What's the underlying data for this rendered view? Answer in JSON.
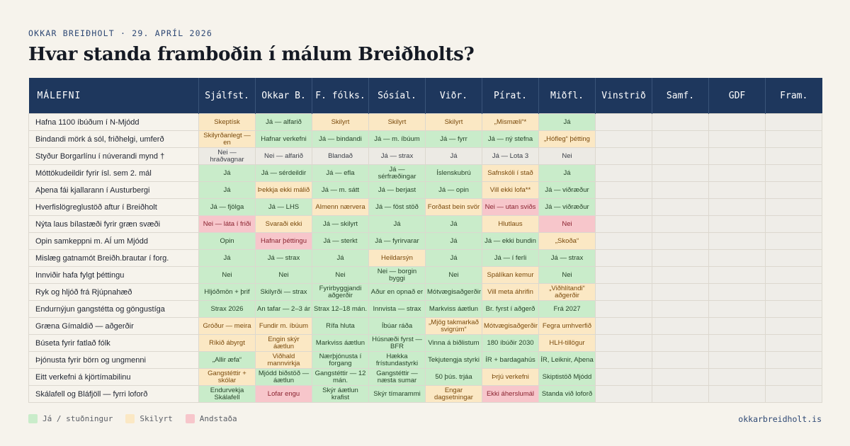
{
  "header": {
    "meta": "OKKAR BREIÐHOLT · 29. APRÍL 2026",
    "title": "Hvar standa framboðin í málum Breiðholts?"
  },
  "table": {
    "columns": [
      "MÁLEFNI",
      "Sjálfst.",
      "Okkar B.",
      "F. fólks.",
      "Sósíal.",
      "Viðr.",
      "Pírat.",
      "Miðfl.",
      "Vinstrið",
      "Samf.",
      "GDF",
      "Fram."
    ],
    "rows": [
      {
        "issue": "Hafna 1100 íbúðum í N-Mjódd",
        "cells": [
          [
            "Skeptísk",
            "s"
          ],
          [
            "Já — alfarið",
            "j"
          ],
          [
            "Skilyrt",
            "s"
          ],
          [
            "Skilyrt",
            "s"
          ],
          [
            "Skilyrt",
            "s"
          ],
          [
            "„Mismæli“*",
            "s"
          ],
          [
            "Já",
            "j"
          ],
          [
            "",
            "e"
          ],
          [
            "",
            "e"
          ],
          [
            "",
            "e"
          ],
          [
            "",
            "e"
          ]
        ]
      },
      {
        "issue": "Bindandi mörk á sól, friðhelgi, umferð",
        "cells": [
          [
            "Skilyrðanlegt — en",
            "s"
          ],
          [
            "Hafnar verkefni",
            "j"
          ],
          [
            "Já — bindandi",
            "j"
          ],
          [
            "Já — m. íbúum",
            "j"
          ],
          [
            "Já — fyrr",
            "j"
          ],
          [
            "Já — ný stefna",
            "j"
          ],
          [
            "„Hófleg“ þétting",
            "s"
          ],
          [
            "",
            "e"
          ],
          [
            "",
            "e"
          ],
          [
            "",
            "e"
          ],
          [
            "",
            "e"
          ]
        ]
      },
      {
        "issue": "Styður Borgarlínu í núverandi mynd †",
        "cells": [
          [
            "Nei — hraðvagnar",
            "n"
          ],
          [
            "Nei — alfarið",
            "n"
          ],
          [
            "Blandað",
            "n"
          ],
          [
            "Já — strax",
            "n"
          ],
          [
            "Já",
            "n"
          ],
          [
            "Já — Lota 3",
            "n"
          ],
          [
            "Nei",
            "n"
          ],
          [
            "",
            "e"
          ],
          [
            "",
            "e"
          ],
          [
            "",
            "e"
          ],
          [
            "",
            "e"
          ]
        ]
      },
      {
        "issue": "Móttökudeildir fyrir ísl. sem 2. mál",
        "cells": [
          [
            "Já",
            "j"
          ],
          [
            "Já — sérdeildir",
            "j"
          ],
          [
            "Já — efla",
            "j"
          ],
          [
            "Já — sérfræðingar",
            "j"
          ],
          [
            "Íslenskubrú",
            "j"
          ],
          [
            "Safnskóli í stað",
            "s"
          ],
          [
            "Já",
            "j"
          ],
          [
            "",
            "e"
          ],
          [
            "",
            "e"
          ],
          [
            "",
            "e"
          ],
          [
            "",
            "e"
          ]
        ]
      },
      {
        "issue": "Aþena fái kjallarann í Austurbergi",
        "cells": [
          [
            "Já",
            "j"
          ],
          [
            "Þekkja ekki málið",
            "s"
          ],
          [
            "Já — m. sátt",
            "j"
          ],
          [
            "Já — berjast",
            "j"
          ],
          [
            "Já — opin",
            "j"
          ],
          [
            "Vill ekki lofa**",
            "s"
          ],
          [
            "Já — viðræður",
            "j"
          ],
          [
            "",
            "e"
          ],
          [
            "",
            "e"
          ],
          [
            "",
            "e"
          ],
          [
            "",
            "e"
          ]
        ]
      },
      {
        "issue": "Hverfislögreglustöð aftur í Breiðholt",
        "cells": [
          [
            "Já — fjölga",
            "j"
          ],
          [
            "Já — LHS",
            "j"
          ],
          [
            "Almenn nærvera",
            "s"
          ],
          [
            "Já — föst stöð",
            "j"
          ],
          [
            "Forðast bein svör",
            "s"
          ],
          [
            "Nei — utan sviðs",
            "a"
          ],
          [
            "Já — viðræður",
            "j"
          ],
          [
            "",
            "e"
          ],
          [
            "",
            "e"
          ],
          [
            "",
            "e"
          ],
          [
            "",
            "e"
          ]
        ]
      },
      {
        "issue": "Nýta laus bílastæði fyrir græn svæði",
        "cells": [
          [
            "Nei — láta í friði",
            "a"
          ],
          [
            "Svaraði ekki",
            "s"
          ],
          [
            "Já — skilyrt",
            "j"
          ],
          [
            "Já",
            "j"
          ],
          [
            "Já",
            "j"
          ],
          [
            "Hlutlaus",
            "s"
          ],
          [
            "Nei",
            "a"
          ],
          [
            "",
            "e"
          ],
          [
            "",
            "e"
          ],
          [
            "",
            "e"
          ],
          [
            "",
            "e"
          ]
        ]
      },
      {
        "issue": "Opin samkeppni m. AÍ um Mjódd",
        "cells": [
          [
            "Opin",
            "j"
          ],
          [
            "Hafnar þéttingu",
            "a"
          ],
          [
            "Já — sterkt",
            "j"
          ],
          [
            "Já — fyrirvarar",
            "j"
          ],
          [
            "Já",
            "j"
          ],
          [
            "Já — ekki bundin",
            "j"
          ],
          [
            "„Skoða“",
            "s"
          ],
          [
            "",
            "e"
          ],
          [
            "",
            "e"
          ],
          [
            "",
            "e"
          ],
          [
            "",
            "e"
          ]
        ]
      },
      {
        "issue": "Mislæg gatnamót Breiðh.brautar í forg.",
        "cells": [
          [
            "Já",
            "j"
          ],
          [
            "Já — strax",
            "j"
          ],
          [
            "Já",
            "j"
          ],
          [
            "Heildarsýn",
            "s"
          ],
          [
            "Já",
            "j"
          ],
          [
            "Já — í ferli",
            "j"
          ],
          [
            "Já — strax",
            "j"
          ],
          [
            "",
            "e"
          ],
          [
            "",
            "e"
          ],
          [
            "",
            "e"
          ],
          [
            "",
            "e"
          ]
        ]
      },
      {
        "issue": "Innviðir hafa fylgt þéttingu",
        "cells": [
          [
            "Nei",
            "j"
          ],
          [
            "Nei",
            "j"
          ],
          [
            "Nei",
            "j"
          ],
          [
            "Nei — borgin byggi",
            "j"
          ],
          [
            "Nei",
            "j"
          ],
          [
            "Spálíkan kemur",
            "s"
          ],
          [
            "Nei",
            "j"
          ],
          [
            "",
            "e"
          ],
          [
            "",
            "e"
          ],
          [
            "",
            "e"
          ],
          [
            "",
            "e"
          ]
        ]
      },
      {
        "issue": "Ryk og hljóð frá Rjúpnahæð",
        "cells": [
          [
            "Hljóðmön + þrif",
            "j"
          ],
          [
            "Skilyrði — strax",
            "j"
          ],
          [
            "Fyrirbyggjandi aðgerðir",
            "j"
          ],
          [
            "Aður en opnað er",
            "j"
          ],
          [
            "Mótvægisaðgerðir",
            "j"
          ],
          [
            "Vill meta áhrifin",
            "s"
          ],
          [
            "„Viðhlítandi“ aðgerðir",
            "s"
          ],
          [
            "",
            "e"
          ],
          [
            "",
            "e"
          ],
          [
            "",
            "e"
          ],
          [
            "",
            "e"
          ]
        ]
      },
      {
        "issue": "Endurnýjun gangstétta og göngustíga",
        "cells": [
          [
            "Strax 2026",
            "j"
          ],
          [
            "An tafar — 2–3 ár",
            "j"
          ],
          [
            "Strax 12–18 mán.",
            "j"
          ],
          [
            "Innvista — strax",
            "j"
          ],
          [
            "Markviss áætlun",
            "j"
          ],
          [
            "Br. fyrst í aðgerð",
            "j"
          ],
          [
            "Frá 2027",
            "j"
          ],
          [
            "",
            "e"
          ],
          [
            "",
            "e"
          ],
          [
            "",
            "e"
          ],
          [
            "",
            "e"
          ]
        ]
      },
      {
        "issue": "Græna Gímaldið — aðgerðir",
        "cells": [
          [
            "Gróður — meira",
            "s"
          ],
          [
            "Fundir m. íbúum",
            "s"
          ],
          [
            "Rífa hluta",
            "j"
          ],
          [
            "Íbúar ráða",
            "j"
          ],
          [
            "„Mjög takmarkað svigrúm“",
            "s"
          ],
          [
            "Mótvægisaðgerðir",
            "s"
          ],
          [
            "Fegra umhverfið",
            "s"
          ],
          [
            "",
            "e"
          ],
          [
            "",
            "e"
          ],
          [
            "",
            "e"
          ],
          [
            "",
            "e"
          ]
        ]
      },
      {
        "issue": "Búseta fyrir fatlað fólk",
        "cells": [
          [
            "Ríkið ábyrgt",
            "s"
          ],
          [
            "Engin skýr áætlun",
            "s"
          ],
          [
            "Markviss áætlun",
            "j"
          ],
          [
            "Húsnæði fyrst — BFR",
            "j"
          ],
          [
            "Vinna á biðlistum",
            "j"
          ],
          [
            "180 íbúðir 2030",
            "j"
          ],
          [
            "HLH-tillögur",
            "s"
          ],
          [
            "",
            "e"
          ],
          [
            "",
            "e"
          ],
          [
            "",
            "e"
          ],
          [
            "",
            "e"
          ]
        ]
      },
      {
        "issue": "Þjónusta fyrir börn og ungmenni",
        "cells": [
          [
            "„Allir æfa“",
            "j"
          ],
          [
            "Viðhald mannvirkja",
            "s"
          ],
          [
            "Nærþjónusta í forgang",
            "j"
          ],
          [
            "Hækka frístundastyrki",
            "j"
          ],
          [
            "Tekjutengja styrki",
            "j"
          ],
          [
            "ÍR + bardagahús",
            "j"
          ],
          [
            "ÍR, Leiknir, Aþena",
            "j"
          ],
          [
            "",
            "e"
          ],
          [
            "",
            "e"
          ],
          [
            "",
            "e"
          ],
          [
            "",
            "e"
          ]
        ]
      },
      {
        "issue": "Eitt verkefni á kjörtímabilinu",
        "cells": [
          [
            "Gangstéttir + skólar",
            "s"
          ],
          [
            "Mjódd biðstöð — áætlun",
            "j"
          ],
          [
            "Gangstéttir — 12 mán.",
            "j"
          ],
          [
            "Gangstéttir — næsta sumar",
            "j"
          ],
          [
            "50 þús. trjáa",
            "j"
          ],
          [
            "Þrjú verkefni",
            "s"
          ],
          [
            "Skiptistöð Mjódd",
            "j"
          ],
          [
            "",
            "e"
          ],
          [
            "",
            "e"
          ],
          [
            "",
            "e"
          ],
          [
            "",
            "e"
          ]
        ]
      },
      {
        "issue": "Skálafell og Bláfjöll — fyrri loforð",
        "cells": [
          [
            "Endurvekja Skálafell",
            "j"
          ],
          [
            "Lofar engu",
            "a"
          ],
          [
            "Skýr áætlun krafist",
            "j"
          ],
          [
            "Skýr tímarammi",
            "j"
          ],
          [
            "Engar dagsetningar",
            "s"
          ],
          [
            "Ekki áherslumál",
            "a"
          ],
          [
            "Standa við loforð",
            "j"
          ],
          [
            "",
            "e"
          ],
          [
            "",
            "e"
          ],
          [
            "",
            "e"
          ],
          [
            "",
            "e"
          ]
        ]
      }
    ]
  },
  "status_colors": {
    "ja": "#c9ecca",
    "skilyrt": "#fbe8c4",
    "andstada": "#f7c6cb",
    "neutral": "#eceae4"
  },
  "legend": [
    {
      "label": "Já / stuðningur",
      "color": "#c9ecca"
    },
    {
      "label": "Skilyrt",
      "color": "#fbe8c4"
    },
    {
      "label": "Andstaða",
      "color": "#f7c6cb"
    }
  ],
  "footer": {
    "site": "okkarbreidholt.is"
  }
}
